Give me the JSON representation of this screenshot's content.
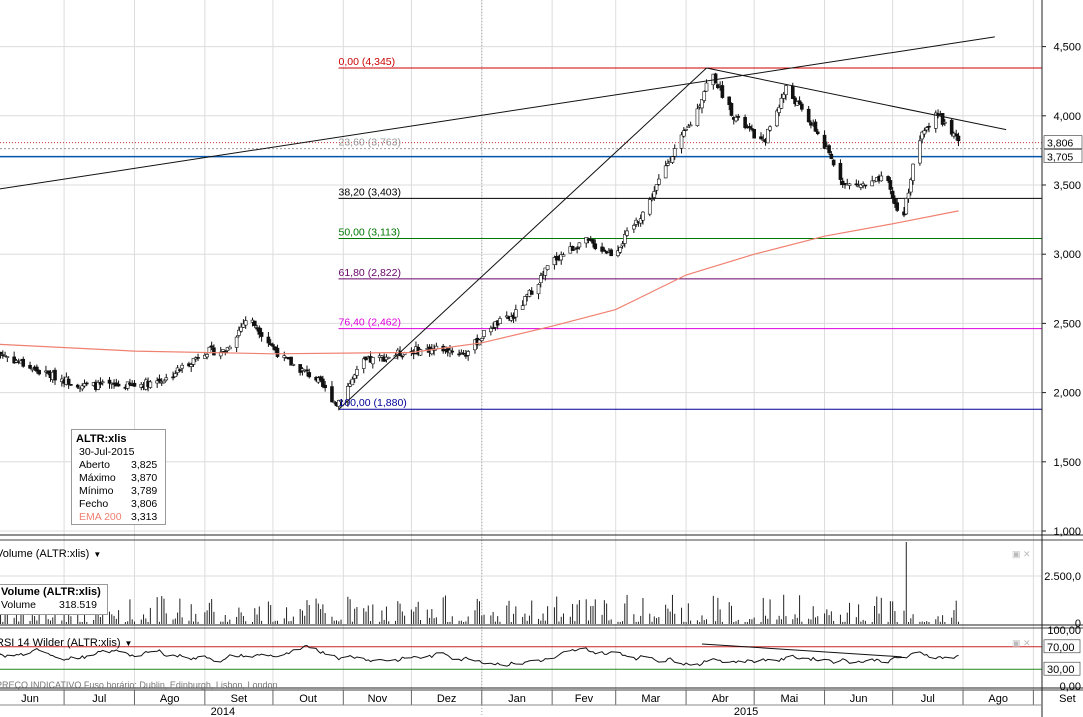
{
  "chart_data": [
    {
      "type": "candlestick",
      "symbol": "ALTR:xlis",
      "y_ticks": [
        "4,500",
        "4,000",
        "3,500",
        "3,000",
        "2,500",
        "2,000",
        "1,500",
        "1,000"
      ],
      "ylim": [
        1.0,
        4.75
      ],
      "last_price_tag": "3,806",
      "line_price_tag": "3,705",
      "fibonacci": [
        {
          "label": "0,00 (4,345)",
          "value": 4.345,
          "color": "#cc0000"
        },
        {
          "label": "23,60 (3,763)",
          "value": 3.763,
          "color": "#999999"
        },
        {
          "label": "38,20 (3,403)",
          "value": 3.403,
          "color": "#000000"
        },
        {
          "label": "50,00 (3,113)",
          "value": 3.113,
          "color": "#007700"
        },
        {
          "label": "61,80 (2,822)",
          "value": 2.822,
          "color": "#660066"
        },
        {
          "label": "76,40 (2,462)",
          "value": 2.462,
          "color": "#dd00dd"
        },
        {
          "label": "100,00 (1,880)",
          "value": 1.88,
          "color": "#000099"
        }
      ],
      "horizontal_line": {
        "value": 3.705,
        "color": "#0055aa"
      },
      "ema_label": "EMA 200",
      "price_path": [
        [
          "2014-06-01",
          2.3
        ],
        [
          "2014-06-20",
          2.15
        ],
        [
          "2014-07-10",
          2.05
        ],
        [
          "2014-08-01",
          2.05
        ],
        [
          "2014-08-15",
          2.1
        ],
        [
          "2014-09-01",
          2.3
        ],
        [
          "2014-09-10",
          2.3
        ],
        [
          "2014-09-20",
          2.55
        ],
        [
          "2014-10-05",
          2.25
        ],
        [
          "2014-10-20",
          2.1
        ],
        [
          "2014-10-29",
          1.92
        ],
        [
          "2014-11-10",
          2.22
        ],
        [
          "2014-11-30",
          2.3
        ],
        [
          "2014-12-15",
          2.32
        ],
        [
          "2014-12-25",
          2.28
        ],
        [
          "2015-01-05",
          2.48
        ],
        [
          "2015-01-15",
          2.55
        ],
        [
          "2015-02-01",
          2.95
        ],
        [
          "2015-02-15",
          3.1
        ],
        [
          "2015-02-28",
          3.0
        ],
        [
          "2015-03-15",
          3.35
        ],
        [
          "2015-03-25",
          3.7
        ],
        [
          "2015-04-05",
          4.0
        ],
        [
          "2015-04-12",
          4.32
        ],
        [
          "2015-04-22",
          4.0
        ],
        [
          "2015-05-05",
          3.8
        ],
        [
          "2015-05-15",
          4.2
        ],
        [
          "2015-05-28",
          3.9
        ],
        [
          "2015-06-10",
          3.5
        ],
        [
          "2015-06-20",
          3.5
        ],
        [
          "2015-06-28",
          3.55
        ],
        [
          "2015-07-05",
          3.22
        ],
        [
          "2015-07-12",
          3.8
        ],
        [
          "2015-07-20",
          4.03
        ],
        [
          "2015-07-30",
          3.806
        ]
      ],
      "ema_path": [
        [
          "2014-06-01",
          2.35
        ],
        [
          "2014-08-01",
          2.3
        ],
        [
          "2014-10-01",
          2.28
        ],
        [
          "2014-12-01",
          2.29
        ],
        [
          "2015-01-01",
          2.36
        ],
        [
          "2015-02-01",
          2.48
        ],
        [
          "2015-03-01",
          2.6
        ],
        [
          "2015-04-01",
          2.85
        ],
        [
          "2015-05-01",
          3.0
        ],
        [
          "2015-06-01",
          3.13
        ],
        [
          "2015-07-01",
          3.22
        ],
        [
          "2015-07-30",
          3.313
        ]
      ],
      "trendlines": [
        {
          "from": [
            "2014-05-25",
            3.45
          ],
          "to": [
            "2015-08-15",
            4.57
          ]
        },
        {
          "from": [
            "2014-10-30",
            1.88
          ],
          "to": [
            "2015-04-10",
            4.345
          ]
        },
        {
          "from": [
            "2015-04-10",
            4.345
          ],
          "to": [
            "2015-08-20",
            3.9
          ]
        }
      ]
    },
    {
      "type": "bar",
      "title": "Volume (ALTR:xlis)",
      "y_ticks": [
        "2.500,0",
        "0"
      ],
      "spike_date": "2015-07-07"
    },
    {
      "type": "line",
      "title": "RSI 14 Wilder (ALTR:xlis)",
      "y_ticks": [
        "100,00",
        "70,00",
        "30,00",
        "0,00"
      ],
      "levels": [
        70,
        30
      ]
    }
  ],
  "x_axis": {
    "months": [
      "Jun",
      "Jul",
      "Ago",
      "Set",
      "Out",
      "Nov",
      "Dez",
      "Jan",
      "Fev",
      "Mar",
      "Abr",
      "Mai",
      "Jun",
      "Jul",
      "Ago",
      "Set"
    ],
    "years": [
      "2014",
      "2015"
    ]
  },
  "info_box": {
    "symbol": "ALTR:xlis",
    "date": "30-Jul-2015",
    "rows": [
      {
        "label": "Aberto",
        "value": "3,825"
      },
      {
        "label": "Máximo",
        "value": "3,870"
      },
      {
        "label": "Mínimo",
        "value": "3,789"
      },
      {
        "label": "Fecho",
        "value": "3,806"
      },
      {
        "label": "EMA 200",
        "value": "3,313"
      }
    ]
  },
  "volume_box": {
    "title": "Volume (ALTR:xlis)",
    "label": "Volume",
    "value": "318.519"
  },
  "footer_note": "PREÇO INDICATIVO   Fuso horário: Dublin, Edinburgh, Lisbon, London"
}
